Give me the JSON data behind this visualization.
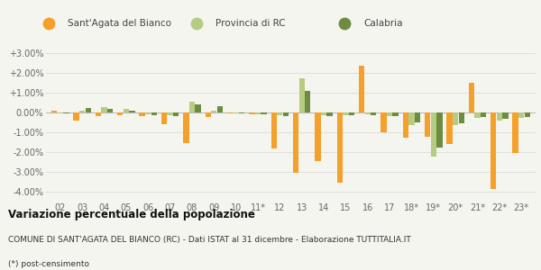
{
  "years": [
    "02",
    "03",
    "04",
    "05",
    "06",
    "07",
    "08",
    "09",
    "10",
    "11*",
    "12",
    "13",
    "14",
    "15",
    "16",
    "17",
    "18*",
    "19*",
    "20*",
    "21*",
    "22*",
    "23*"
  ],
  "sant_agata": [
    0.1,
    -0.4,
    -0.2,
    -0.15,
    -0.2,
    -0.6,
    -1.55,
    -0.25,
    -0.05,
    -0.1,
    -1.85,
    -3.05,
    -2.45,
    -3.55,
    2.35,
    -1.0,
    -1.3,
    -1.25,
    -1.6,
    1.5,
    -3.9,
    -2.05
  ],
  "provincia_rc": [
    -0.05,
    0.1,
    0.25,
    0.15,
    -0.1,
    -0.15,
    0.55,
    0.1,
    -0.05,
    -0.1,
    -0.15,
    1.7,
    -0.15,
    -0.15,
    -0.1,
    -0.2,
    -0.65,
    -2.25,
    -0.65,
    -0.3,
    -0.4,
    -0.3
  ],
  "calabria": [
    -0.05,
    0.2,
    0.15,
    0.1,
    -0.15,
    -0.2,
    0.4,
    0.3,
    -0.05,
    -0.1,
    -0.2,
    1.1,
    -0.2,
    -0.15,
    -0.15,
    -0.2,
    -0.5,
    -1.8,
    -0.55,
    -0.25,
    -0.35,
    -0.25
  ],
  "color_sant_agata": "#f5a02a",
  "color_provincia": "#b5cc82",
  "color_calabria": "#6e8c40",
  "bg_color": "#f5f5ef",
  "grid_color": "#dedede",
  "title_bold": "Variazione percentuale della popolazione",
  "subtitle": "COMUNE DI SANT'AGATA DEL BIANCO (RC) - Dati ISTAT al 31 dicembre - Elaborazione TUTTITALIA.IT",
  "footnote": "(*) post-censimento",
  "ylim": [
    -4.5,
    3.5
  ],
  "ytick_vals": [
    -4.0,
    -3.0,
    -2.0,
    -1.0,
    0.0,
    1.0,
    2.0,
    3.0
  ],
  "ytick_labels": [
    "-4.00%",
    "-3.00%",
    "-2.00%",
    "-1.00%",
    "0.00%",
    "+1.00%",
    "+2.00%",
    "+3.00%"
  ]
}
